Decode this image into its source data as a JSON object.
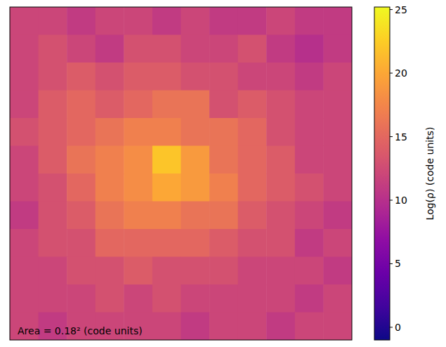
{
  "chart_data": {
    "type": "heatmap",
    "annotation": "Area = 0.18² (code units)",
    "tick_labels": false,
    "colorbar_label": "Log(ρ) (code units)",
    "colorbar_lim": [
      -1,
      25.2
    ],
    "colorbar_ticks": [
      0,
      5,
      10,
      15,
      20,
      25
    ],
    "cells": [
      [
        12,
        12,
        11,
        12,
        12,
        11,
        12,
        11,
        11,
        12,
        11,
        11
      ],
      [
        12,
        13,
        12,
        11,
        13,
        13,
        12,
        12,
        13,
        11,
        10,
        11
      ],
      [
        12,
        13,
        14,
        13,
        14,
        14,
        13,
        13,
        12,
        12,
        11,
        12
      ],
      [
        12,
        14,
        15,
        14,
        15,
        16,
        16,
        13,
        14,
        13,
        12,
        12
      ],
      [
        13,
        14,
        15,
        16,
        17,
        17,
        16,
        16,
        15,
        13,
        12,
        12
      ],
      [
        12,
        14,
        16,
        17,
        18,
        22,
        19,
        16,
        15,
        14,
        12,
        12
      ],
      [
        12,
        13,
        15,
        17,
        18,
        20,
        19,
        17,
        15,
        14,
        13,
        12
      ],
      [
        11,
        13,
        14,
        16,
        17,
        17,
        16,
        16,
        14,
        13,
        12,
        11
      ],
      [
        12,
        13,
        13,
        15,
        15,
        15,
        15,
        14,
        13,
        13,
        11,
        12
      ],
      [
        12,
        12,
        13,
        13,
        14,
        13,
        13,
        13,
        12,
        12,
        12,
        11
      ],
      [
        12,
        12,
        12,
        13,
        12,
        13,
        12,
        12,
        12,
        12,
        11,
        12
      ],
      [
        12,
        11,
        12,
        12,
        12,
        12,
        11,
        12,
        12,
        11,
        12,
        12
      ]
    ]
  }
}
